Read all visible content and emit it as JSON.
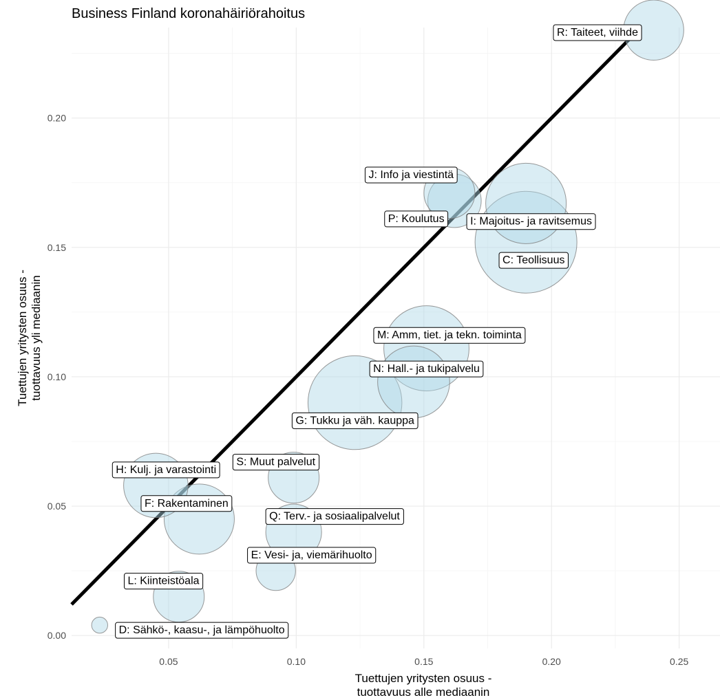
{
  "chart_data": {
    "type": "scatter",
    "title": "Business Finland koronahäiriörahoitus",
    "xlabel": [
      "Tuettujen yritysten osuus -",
      "tuottavuus alle mediaanin"
    ],
    "ylabel": [
      "Tuettujen yritysten osuus -",
      "tuottavuus yli mediaanin"
    ],
    "xlim": [
      0.012,
      0.266
    ],
    "ylim": [
      -0.005,
      0.235
    ],
    "x_ticks": [
      {
        "value": 0.05,
        "label": "0.05"
      },
      {
        "value": 0.1,
        "label": "0.10"
      },
      {
        "value": 0.15,
        "label": "0.15"
      },
      {
        "value": 0.2,
        "label": "0.20"
      },
      {
        "value": 0.25,
        "label": "0.25"
      }
    ],
    "y_ticks": [
      {
        "value": 0.0,
        "label": "0.00"
      },
      {
        "value": 0.05,
        "label": "0.05"
      },
      {
        "value": 0.1,
        "label": "0.10"
      },
      {
        "value": 0.15,
        "label": "0.15"
      },
      {
        "value": 0.2,
        "label": "0.20"
      }
    ],
    "grid": true,
    "reference_line": {
      "slope": 1,
      "intercept": 0
    },
    "bubble_color": "#add8e6",
    "points": [
      {
        "label": "R: Taiteet, viihde",
        "x": 0.24,
        "y": 0.234,
        "size": 0.7,
        "label_x": 0.218,
        "label_y": 0.233
      },
      {
        "label": "J: Info ja viestintä",
        "x": 0.16,
        "y": 0.171,
        "size": 0.5,
        "label_x": 0.145,
        "label_y": 0.178
      },
      {
        "label": "P: Koulutus",
        "x": 0.162,
        "y": 0.168,
        "size": 0.55,
        "label_x": 0.147,
        "label_y": 0.161
      },
      {
        "label": "I: Majoitus- ja ravitsemus",
        "x": 0.19,
        "y": 0.167,
        "size": 1.25,
        "label_x": 0.192,
        "label_y": 0.16
      },
      {
        "label": "C: Teollisuus",
        "x": 0.19,
        "y": 0.152,
        "size": 2.0,
        "label_x": 0.193,
        "label_y": 0.145
      },
      {
        "label": "M: Amm, tiet. ja tekn. toiminta",
        "x": 0.151,
        "y": 0.111,
        "size": 1.4,
        "label_x": 0.16,
        "label_y": 0.116
      },
      {
        "label": "N: Hall.- ja tukipalvelu",
        "x": 0.146,
        "y": 0.098,
        "size": 1.0,
        "label_x": 0.151,
        "label_y": 0.103
      },
      {
        "label": "G: Tukku ja väh. kauppa",
        "x": 0.123,
        "y": 0.09,
        "size": 1.7,
        "label_x": 0.123,
        "label_y": 0.083
      },
      {
        "label": "S: Muut palvelut",
        "x": 0.099,
        "y": 0.061,
        "size": 0.5,
        "label_x": 0.092,
        "label_y": 0.067
      },
      {
        "label": "H: Kulj. ja varastointi",
        "x": 0.045,
        "y": 0.058,
        "size": 0.8,
        "label_x": 0.049,
        "label_y": 0.064
      },
      {
        "label": "F: Rakentaminen",
        "x": 0.062,
        "y": 0.045,
        "size": 0.95,
        "label_x": 0.057,
        "label_y": 0.051
      },
      {
        "label": "Q: Terv.- ja sosiaalipalvelut",
        "x": 0.099,
        "y": 0.04,
        "size": 0.6,
        "label_x": 0.115,
        "label_y": 0.046
      },
      {
        "label": "E: Vesi- ja, viemärihuolto",
        "x": 0.092,
        "y": 0.025,
        "size": 0.3,
        "label_x": 0.106,
        "label_y": 0.031
      },
      {
        "label": "L: Kiinteistöala",
        "x": 0.054,
        "y": 0.015,
        "size": 0.5,
        "label_x": 0.048,
        "label_y": 0.021
      },
      {
        "label": "D: Sähkö-, kaasu-, ja lämpöhuolto",
        "x": 0.023,
        "y": 0.004,
        "size": 0.05,
        "label_x": 0.063,
        "label_y": 0.002
      }
    ]
  }
}
